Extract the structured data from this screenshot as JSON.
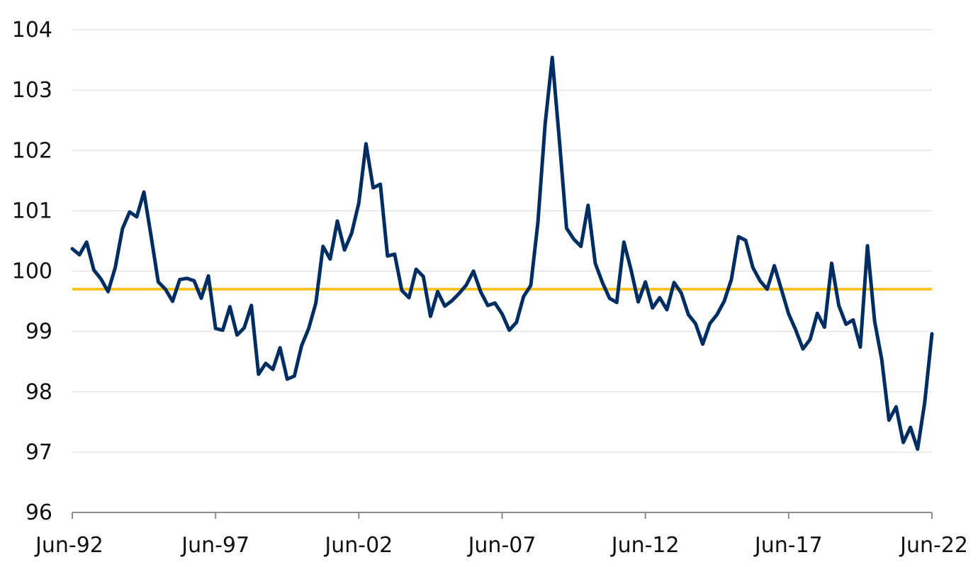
{
  "chart_data": {
    "type": "line",
    "title": "",
    "xlabel": "",
    "ylabel": "",
    "ylim": [
      96,
      104
    ],
    "y_ticks": [
      96,
      97,
      98,
      99,
      100,
      101,
      102,
      103,
      104
    ],
    "x_start": "Jun-92",
    "x_end": "Jun-22",
    "x_ticks": [
      "Jun-92",
      "Jun-97",
      "Jun-02",
      "Jun-07",
      "Jun-12",
      "Jun-17",
      "Jun-22"
    ],
    "frequency": "quarterly",
    "grid": true,
    "legend": "none",
    "colors": {
      "series_line": "#002D62",
      "reference_line": "#F7C325",
      "grid": "#D9D9D9",
      "axis": "#8C8C8C"
    },
    "reference_line": {
      "value": 99.7
    },
    "series": [
      {
        "values": [
          100.37,
          100.27,
          100.48,
          100.02,
          99.87,
          99.66,
          100.06,
          100.7,
          100.98,
          100.9,
          101.31,
          100.58,
          99.82,
          99.7,
          99.5,
          99.86,
          99.88,
          99.84,
          99.55,
          99.92,
          99.05,
          99.02,
          99.41,
          98.94,
          99.06,
          99.43,
          98.29,
          98.47,
          98.37,
          98.73,
          98.21,
          98.26,
          98.76,
          99.05,
          99.47,
          100.41,
          100.2,
          100.83,
          100.35,
          100.63,
          101.13,
          102.11,
          101.38,
          101.44,
          100.25,
          100.28,
          99.68,
          99.56,
          100.03,
          99.91,
          99.25,
          99.66,
          99.42,
          99.51,
          99.63,
          99.77,
          100.0,
          99.66,
          99.43,
          99.47,
          99.29,
          99.02,
          99.15,
          99.58,
          99.76,
          100.81,
          102.43,
          103.54,
          102.16,
          100.71,
          100.53,
          100.41,
          101.09,
          100.13,
          99.81,
          99.55,
          99.48,
          100.48,
          100.02,
          99.49,
          99.82,
          99.39,
          99.56,
          99.36,
          99.81,
          99.64,
          99.28,
          99.13,
          98.79,
          99.13,
          99.28,
          99.5,
          99.86,
          100.57,
          100.51,
          100.06,
          99.84,
          99.7,
          100.09,
          99.69,
          99.29,
          99.02,
          98.71,
          98.87,
          99.3,
          99.07,
          100.13,
          99.43,
          99.12,
          99.19,
          98.74,
          100.42,
          99.17,
          98.53,
          97.53,
          97.75,
          97.16,
          97.41,
          97.05,
          97.83,
          98.96
        ]
      }
    ]
  }
}
